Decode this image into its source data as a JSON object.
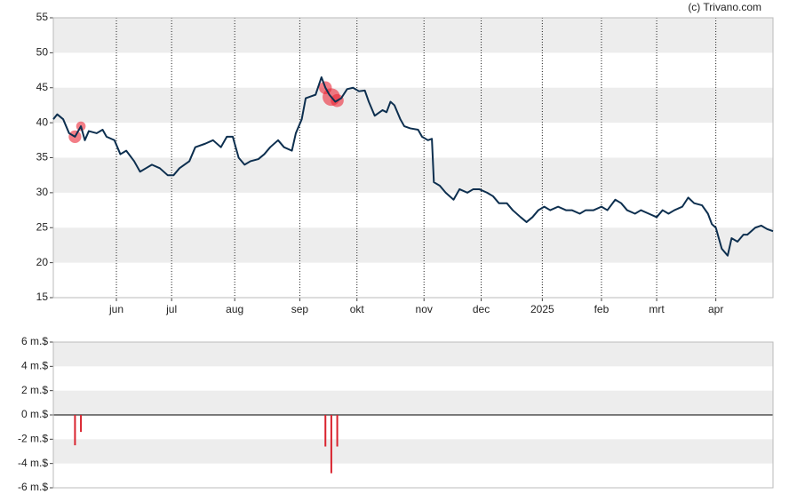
{
  "credit": "(c) Trivano.com",
  "chart_data": [
    {
      "type": "line",
      "x": [
        0,
        2,
        5,
        8,
        11,
        14,
        16,
        18,
        22,
        25,
        27,
        31,
        34,
        37,
        41,
        44,
        47,
        50,
        54,
        58,
        61,
        64,
        69,
        72,
        77,
        81,
        85,
        88,
        91,
        94,
        97,
        100,
        104,
        107,
        110,
        114,
        117,
        121,
        123,
        126,
        128,
        131,
        133,
        136,
        138,
        140,
        143,
        146,
        149,
        152,
        155,
        158,
        160,
        163,
        167,
        169,
        171,
        173,
        176,
        178,
        181,
        185,
        187,
        190,
        192,
        193,
        196,
        199,
        203,
        206,
        210,
        213,
        216,
        220,
        223,
        226,
        230,
        233,
        237,
        240,
        243,
        246,
        249,
        252,
        256,
        260,
        263,
        267,
        270,
        274,
        278,
        281,
        285,
        288,
        291,
        295,
        298,
        302,
        306,
        309,
        312,
        315,
        319,
        322,
        325,
        329,
        332,
        334,
        336,
        339,
        342,
        344,
        347,
        350,
        352,
        356,
        359,
        362,
        365
      ],
      "series": [
        {
          "color": "#0d2f4f",
          "values": [
            40.5,
            41.2,
            40.5,
            38.5,
            38,
            39.5,
            37.5,
            38.8,
            38.5,
            39,
            38,
            37.5,
            35.5,
            36,
            34.5,
            33,
            33.5,
            34,
            33.5,
            32.5,
            32.5,
            33.5,
            34.5,
            36.5,
            37,
            37.5,
            36.5,
            38,
            38,
            35,
            34,
            34.5,
            34.8,
            35.5,
            36.5,
            37.5,
            36.5,
            36,
            38.5,
            40.5,
            43.5,
            43.8,
            44,
            46.5,
            45,
            44,
            43,
            43.5,
            44.8,
            45,
            44.5,
            44.6,
            43,
            41,
            41.8,
            41.5,
            43,
            42.5,
            40.5,
            39.5,
            39.2,
            39,
            38,
            37.5,
            37.7,
            31.5,
            31,
            30,
            29,
            30.5,
            30,
            30.5,
            30.5,
            30,
            29.5,
            28.5,
            28.5,
            27.5,
            26.5,
            25.8,
            26.5,
            27.5,
            28,
            27.5,
            28,
            27.5,
            27.5,
            27,
            27.5,
            27.5,
            28,
            27.5,
            29,
            28.5,
            27.5,
            27,
            27.5,
            27,
            26.5,
            27.5,
            27,
            27.5,
            28,
            29.3,
            28.5,
            28.2,
            27,
            25.5,
            25,
            22,
            21,
            23.5,
            23,
            24,
            24,
            25,
            25.3,
            24.8,
            24.5
          ]
        }
      ],
      "xlim": [
        0,
        365
      ],
      "xticks": [
        {
          "value": 32,
          "label": "jun"
        },
        {
          "value": 60,
          "label": "jul"
        },
        {
          "value": 92,
          "label": "aug"
        },
        {
          "value": 125,
          "label": "sep"
        },
        {
          "value": 154,
          "label": "okt"
        },
        {
          "value": 188,
          "label": "nov"
        },
        {
          "value": 217,
          "label": "dec"
        },
        {
          "value": 248,
          "label": "2025"
        },
        {
          "value": 278,
          "label": "feb"
        },
        {
          "value": 306,
          "label": "mrt"
        },
        {
          "value": 336,
          "label": "apr"
        }
      ],
      "ylim": [
        15,
        55
      ],
      "yticks": [
        15,
        20,
        25,
        30,
        35,
        40,
        45,
        50,
        55
      ],
      "bands": true,
      "xgrid": "dotted"
    },
    {
      "type": "bar",
      "x": [
        11,
        14,
        138,
        141,
        144
      ],
      "values": [
        -2.5,
        -1.4,
        -2.6,
        -4.8,
        -2.6
      ],
      "color": "#d9232e",
      "xlim": [
        0,
        365
      ],
      "ylim": [
        -6,
        6
      ],
      "yticks": [
        {
          "value": -6,
          "label": "-6 m.$"
        },
        {
          "value": -4,
          "label": "-4 m.$"
        },
        {
          "value": -2,
          "label": "-2 m.$"
        },
        {
          "value": 0,
          "label": "0 m.$"
        },
        {
          "value": 2,
          "label": "2 m.$"
        },
        {
          "value": 4,
          "label": "4 m.$"
        },
        {
          "value": 6,
          "label": "6 m.$"
        }
      ],
      "bands": true
    }
  ]
}
